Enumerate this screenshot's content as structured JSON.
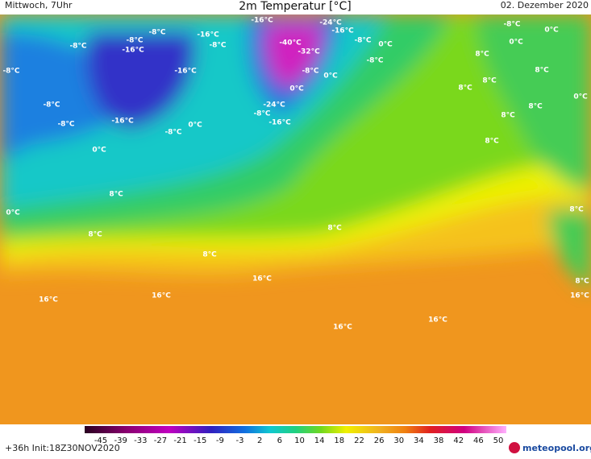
{
  "header": {
    "left": "Mittwoch, 7Uhr",
    "title": "2m Temperatur [°C]",
    "right": "02. Dezember 2020"
  },
  "footer": {
    "run": "+36h Init:18Z30NOV2020",
    "brand": "meteopool.org"
  },
  "colorbar": {
    "ticks": [
      -45,
      -39,
      -33,
      -27,
      -21,
      -15,
      -9,
      -3,
      2,
      6,
      10,
      14,
      18,
      22,
      26,
      30,
      34,
      38,
      42,
      46,
      50
    ]
  },
  "map_labels": [
    "-16°C",
    "-24°C",
    "-16°C",
    "-8°C",
    "-16°C",
    "-8°C",
    "-8°C",
    "-16°C",
    "-8°C",
    "-40°C",
    "-8°C",
    "0°C",
    "-32°C",
    "-8°C",
    "-8°C",
    "-16°C",
    "-8°C",
    "0°C",
    "0°C",
    "-8°C",
    "-24°C",
    "-8°C",
    "-16°C",
    "-16°C",
    "-8°C",
    "0°C",
    "-8°C",
    "0°C",
    "8°C",
    "8°C",
    "8°C",
    "8°C",
    "0°C",
    "8°C",
    "8°C",
    "8°C",
    "8°C",
    "0°C",
    "8°C",
    "8°C",
    "8°C",
    "16°C",
    "16°C",
    "16°C",
    "16°C",
    "16°C",
    "8°C",
    "8°C",
    "16°C",
    "-8°C",
    "0°C",
    "0°C"
  ]
}
